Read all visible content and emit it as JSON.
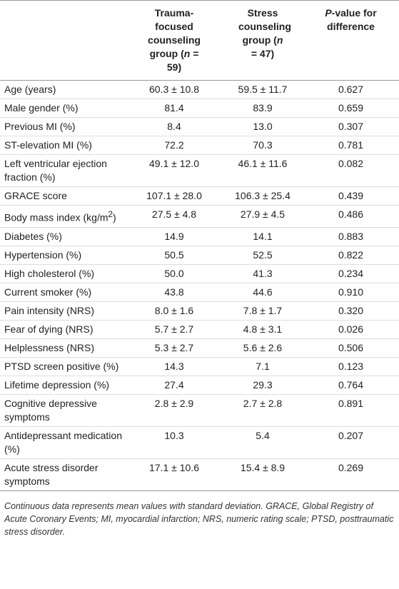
{
  "table": {
    "headers": [
      [
        "Trauma-focused counseling group (",
        {
          "italic": "n"
        },
        " = 59)"
      ],
      [
        "Stress counseling group (",
        {
          "italic": "n"
        },
        " = 47)"
      ],
      [
        {
          "italic": "P"
        },
        "-value for difference"
      ]
    ],
    "rows": [
      [
        "Age (years)",
        "60.3 ± 10.8",
        "59.5 ± 11.7",
        "0.627"
      ],
      [
        "Male gender (%)",
        "81.4",
        "83.9",
        "0.659"
      ],
      [
        "Previous MI (%)",
        "8.4",
        "13.0",
        "0.307"
      ],
      [
        "ST-elevation MI (%)",
        "72.2",
        "70.3",
        "0.781"
      ],
      [
        "Left ventricular ejection fraction (%)",
        "49.1 ± 12.0",
        "46.1 ± 11.6",
        "0.082"
      ],
      [
        "GRACE score",
        "107.1 ± 28.0",
        "106.3 ± 25.4",
        "0.439"
      ],
      [
        [
          "Body mass index (kg/m",
          {
            "sup": "2"
          },
          ")"
        ],
        "27.5 ± 4.8",
        "27.9 ± 4.5",
        "0.486"
      ],
      [
        "Diabetes (%)",
        "14.9",
        "14.1",
        "0.883"
      ],
      [
        "Hypertension (%)",
        "50.5",
        "52.5",
        "0.822"
      ],
      [
        "High cholesterol (%)",
        "50.0",
        "41.3",
        "0.234"
      ],
      [
        "Current smoker (%)",
        "43.8",
        "44.6",
        "0.910"
      ],
      [
        "Pain intensity (NRS)",
        "8.0 ± 1.6",
        "7.8 ± 1.7",
        "0.320"
      ],
      [
        "Fear of dying (NRS)",
        "5.7 ± 2.7",
        "4.8 ± 3.1",
        "0.026"
      ],
      [
        "Helplessness (NRS)",
        "5.3 ± 2.7",
        "5.6 ± 2.6",
        "0.506"
      ],
      [
        "PTSD screen positive (%)",
        "14.3",
        "7.1",
        "0.123"
      ],
      [
        "Lifetime depression (%)",
        "27.4",
        "29.3",
        "0.764"
      ],
      [
        "Cognitive depressive symptoms",
        "2.8 ± 2.9",
        "2.7 ± 2.8",
        "0.891"
      ],
      [
        "Antidepressant medication (%)",
        "10.3",
        "5.4",
        "0.207"
      ],
      [
        "Acute stress disorder symptoms",
        "17.1 ± 10.6",
        "15.4 ± 8.9",
        "0.269"
      ]
    ]
  },
  "footnote": "Continuous data represents mean values with standard deviation. GRACE, Global Registry of Acute Coronary Events; MI, myocardial infarction; NRS, numeric rating scale; PTSD, posttraumatic stress disorder."
}
